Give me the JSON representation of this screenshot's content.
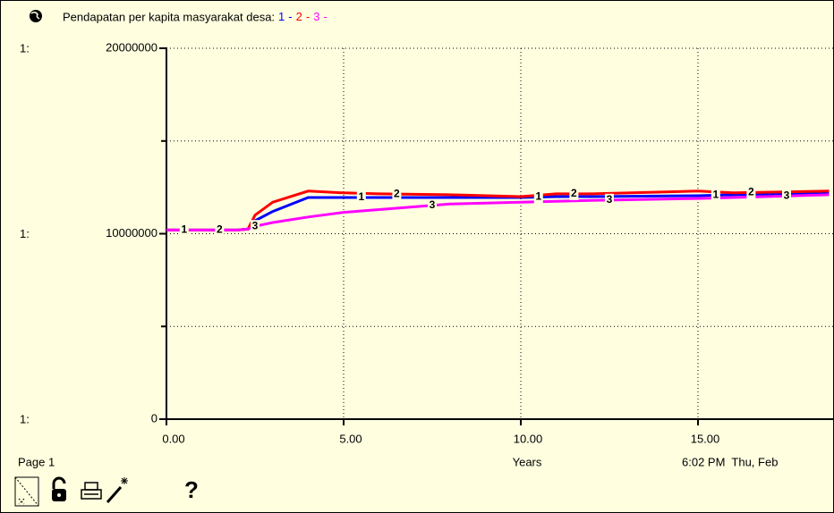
{
  "chart_data": {
    "type": "line",
    "title": "Pendapatan per kapita masyarakat desa:",
    "legend_separator": "-",
    "scale_label": "1:",
    "x_label": "Years",
    "page_label": "Page 1",
    "timestamp": "6:02 PM  Thu, Feb",
    "help": "?",
    "x": [
      0,
      1,
      2,
      2.3,
      2.5,
      3,
      4,
      5,
      6,
      8,
      10,
      11,
      12,
      15,
      16,
      18.7
    ],
    "series": [
      {
        "name": "1",
        "color": "#0000ff",
        "values": [
          10200000,
          10200000,
          10200000,
          10250000,
          10700000,
          11200000,
          11950000,
          11950000,
          11950000,
          11950000,
          11950000,
          12000000,
          12000000,
          12050000,
          12100000,
          12200000
        ]
      },
      {
        "name": "2",
        "color": "#ff0000",
        "values": [
          10200000,
          10200000,
          10200000,
          10250000,
          11000000,
          11700000,
          12300000,
          12200000,
          12150000,
          12100000,
          12000000,
          12150000,
          12150000,
          12300000,
          12200000,
          12300000
        ]
      },
      {
        "name": "3",
        "color": "#ff00ff",
        "values": [
          10200000,
          10200000,
          10200000,
          10250000,
          10400000,
          10600000,
          10900000,
          11150000,
          11300000,
          11600000,
          11700000,
          11750000,
          11800000,
          11900000,
          11950000,
          12100000
        ]
      }
    ],
    "xlim": [
      0,
      20
    ],
    "ylim": [
      0,
      20000000
    ],
    "xticks": [
      {
        "value": 0,
        "label": "0.00"
      },
      {
        "value": 5,
        "label": "5.00"
      },
      {
        "value": 10,
        "label": "10.00"
      },
      {
        "value": 15,
        "label": "15.00"
      }
    ],
    "yticks": [
      0,
      10000000,
      20000000
    ],
    "minor_yticks": [
      5000000,
      15000000
    ],
    "grid": true
  }
}
